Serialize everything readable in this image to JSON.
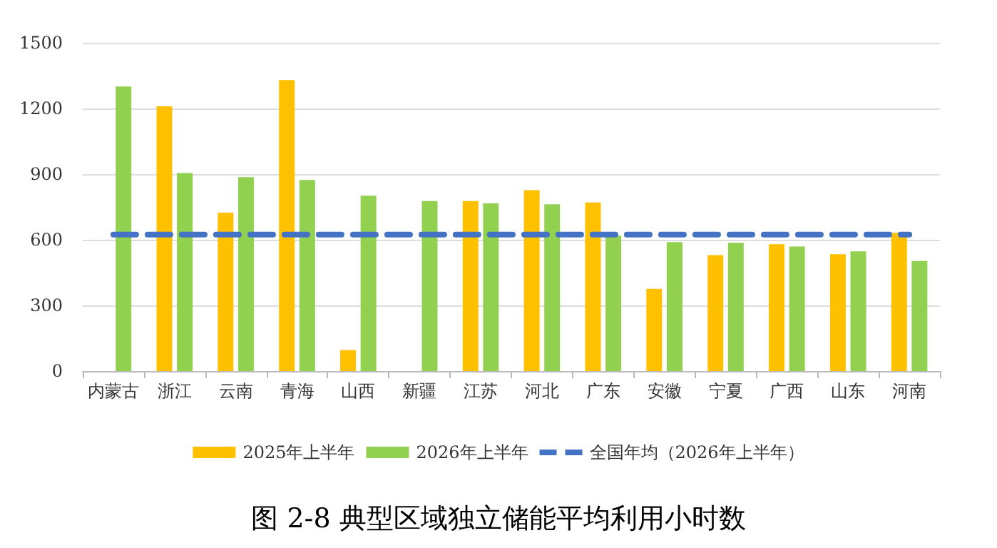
{
  "chart_data": {
    "type": "bar",
    "title": "图 2-8 典型区域独立储能平均利用小时数",
    "categories": [
      "内蒙古",
      "浙江",
      "云南",
      "青海",
      "山西",
      "新疆",
      "江苏",
      "河北",
      "广东",
      "安徽",
      "宁夏",
      "广西",
      "山东",
      "河南"
    ],
    "series": [
      {
        "name": "2025年上半年",
        "color": "#ffc000",
        "values": [
          null,
          1210,
          724,
          1330,
          96,
          null,
          777,
          827,
          770,
          376,
          530,
          580,
          534,
          632
        ]
      },
      {
        "name": "2026年上半年",
        "color": "#92d050",
        "values": [
          1300,
          905,
          886,
          873,
          801,
          777,
          766,
          762,
          619,
          589,
          586,
          569,
          547,
          503
        ]
      },
      {
        "name": "全国年均（2026年上半年）",
        "type": "line",
        "color": "#4472c4",
        "line_style": "dashed",
        "marker": "none",
        "values": [
          624,
          624,
          624,
          624,
          624,
          624,
          624,
          624,
          624,
          624,
          624,
          624,
          624,
          624
        ]
      }
    ],
    "ylim": [
      0,
      1500
    ],
    "yticks": [
      0,
      300,
      600,
      900,
      1200,
      1500
    ],
    "grid": "y",
    "legend": "bottom"
  }
}
